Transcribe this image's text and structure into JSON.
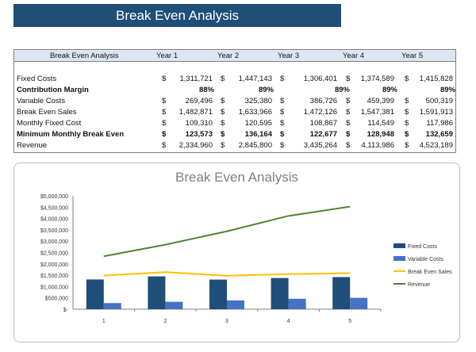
{
  "title": "Break Even Analysis",
  "table": {
    "header": [
      "Break Even Analysis",
      "Year 1",
      "Year 2",
      "Year 3",
      "Year 4",
      "Year 5"
    ],
    "rows": [
      {
        "label": "Fixed Costs",
        "bold": false,
        "currency": true,
        "values": [
          "1,311,721",
          "1,447,143",
          "1,306,401",
          "1,374,589",
          "1,415,828"
        ]
      },
      {
        "label": "Contribution Margin",
        "bold": true,
        "currency": false,
        "values": [
          "88%",
          "89%",
          "89%",
          "89%",
          "89%"
        ]
      },
      {
        "label": "Variable Costs",
        "bold": false,
        "currency": true,
        "values": [
          "269,496",
          "325,380",
          "386,726",
          "459,399",
          "500,319"
        ]
      },
      {
        "label": "Break Even Sales",
        "bold": false,
        "currency": true,
        "values": [
          "1,482,871",
          "1,633,966",
          "1,472,126",
          "1,547,381",
          "1,591,913"
        ]
      },
      {
        "label": "Monthly Fixed Cost",
        "bold": false,
        "currency": true,
        "values": [
          "109,310",
          "120,595",
          "108,867",
          "114,549",
          "117,986"
        ]
      },
      {
        "label": "Minimum Monthly Break Even",
        "bold": true,
        "currency": true,
        "values": [
          "123,573",
          "136,164",
          "122,677",
          "128,948",
          "132,659"
        ]
      },
      {
        "label": "Revenue",
        "bold": false,
        "currency": true,
        "values": [
          "2,334,960",
          "2,845,800",
          "3,435,264",
          "4,113,986",
          "4,523,189"
        ]
      }
    ],
    "currency_symbol": "$"
  },
  "chart_data": {
    "type": "bar",
    "title": "Break Even Analysis",
    "categories": [
      "1",
      "2",
      "3",
      "4",
      "5"
    ],
    "ylim": [
      0,
      5000000
    ],
    "yticks": [
      "$-",
      "$500,000",
      "$1,000,000",
      "$1,500,000",
      "$2,000,000",
      "$2,500,000",
      "$3,000,000",
      "$3,500,000",
      "$4,000,000",
      "$4,500,000",
      "$5,000,000"
    ],
    "legend_position": "right",
    "series": [
      {
        "name": "Fixed Costs",
        "kind": "bar",
        "color": "#1f4e79",
        "values": [
          1311721,
          1447143,
          1306401,
          1374589,
          1415828
        ]
      },
      {
        "name": "Variable Costs",
        "kind": "bar",
        "color": "#4472c4",
        "values": [
          269496,
          325380,
          386726,
          459399,
          500319
        ]
      },
      {
        "name": "Break Even Sales",
        "kind": "line",
        "color": "#ffc000",
        "values": [
          1482871,
          1633966,
          1472126,
          1547381,
          1591913
        ]
      },
      {
        "name": "Revenue",
        "kind": "line",
        "color": "#548235",
        "values": [
          2334960,
          2845800,
          3435264,
          4113986,
          4523189
        ]
      }
    ]
  }
}
